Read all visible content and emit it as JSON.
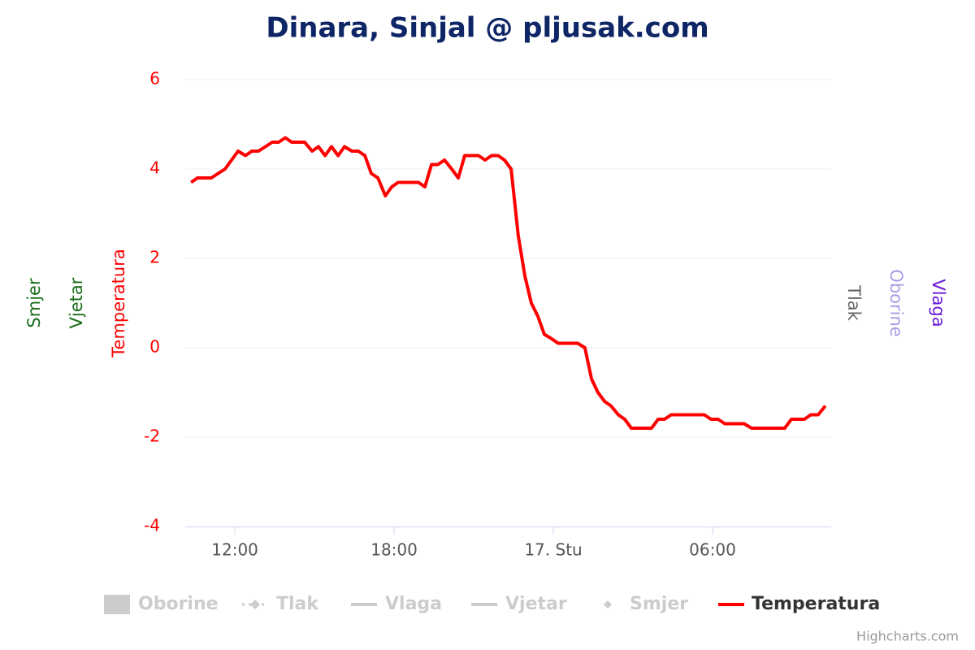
{
  "chart_data": {
    "type": "line",
    "title": "Dinara, Sinjal @ pljusak.com",
    "credits": "Highcharts.com",
    "x": [
      10.35,
      10.59,
      11.11,
      11.63,
      12.12,
      12.4,
      12.64,
      12.89,
      13.41,
      13.65,
      13.9,
      14.14,
      14.63,
      14.91,
      15.15,
      15.4,
      15.64,
      15.89,
      16.13,
      16.41,
      16.65,
      16.9,
      17.14,
      17.39,
      17.67,
      17.91,
      18.15,
      18.92,
      19.16,
      19.41,
      19.65,
      19.9,
      20.17,
      20.42,
      20.66,
      21.18,
      21.43,
      21.67,
      21.92,
      22.16,
      22.41,
      22.68,
      22.93,
      23.17,
      23.42,
      23.66,
      23.94,
      24.18,
      24.92,
      25.19,
      25.44,
      25.68,
      25.93,
      26.17,
      26.45,
      26.69,
      26.94,
      27.7,
      27.95,
      28.19,
      28.44,
      29.69,
      29.94,
      30.21,
      30.46,
      31.19,
      31.47,
      32.72,
      32.97,
      33.46,
      33.7,
      33.98,
      34.25
    ],
    "series": [
      {
        "name": "Temperatura",
        "color": "#ff0000",
        "values": [
          3.7,
          3.8,
          3.8,
          4.0,
          4.4,
          4.3,
          4.4,
          4.4,
          4.6,
          4.6,
          4.7,
          4.6,
          4.6,
          4.4,
          4.5,
          4.3,
          4.5,
          4.3,
          4.5,
          4.4,
          4.4,
          4.3,
          3.9,
          3.8,
          3.4,
          3.6,
          3.7,
          3.7,
          3.6,
          4.1,
          4.1,
          4.2,
          4.0,
          3.8,
          4.3,
          4.3,
          4.2,
          4.3,
          4.3,
          4.2,
          4.0,
          2.5,
          1.6,
          1.0,
          0.7,
          0.3,
          0.2,
          0.1,
          0.1,
          0.0,
          -0.7,
          -1.0,
          -1.2,
          -1.3,
          -1.5,
          -1.6,
          -1.8,
          -1.8,
          -1.6,
          -1.6,
          -1.5,
          -1.5,
          -1.6,
          -1.6,
          -1.7,
          -1.7,
          -1.8,
          -1.8,
          -1.6,
          -1.6,
          -1.5,
          -1.5,
          -1.3
        ]
      }
    ],
    "hidden_series": [
      {
        "name": "Oborine",
        "symbol": "area"
      },
      {
        "name": "Tlak",
        "symbol": "dotted-diamond"
      },
      {
        "name": "Vlaga",
        "symbol": "line"
      },
      {
        "name": "Vjetar",
        "symbol": "line"
      },
      {
        "name": "Smjer",
        "symbol": "diamond"
      }
    ],
    "axis_titles": [
      {
        "text": "Smjer",
        "color": "#1a6e1a",
        "side": "left"
      },
      {
        "text": "Vjetar",
        "color": "#1a6e1a",
        "side": "left"
      },
      {
        "text": "Temperatura",
        "color": "#ff0000",
        "side": "left"
      },
      {
        "text": "Tlak",
        "color": "#666666",
        "side": "right"
      },
      {
        "text": "Oborine",
        "color": "#a79ee6",
        "side": "right"
      },
      {
        "text": "Vlaga",
        "color": "#6a1ad6",
        "side": "right"
      }
    ],
    "xlim": [
      10.13,
      34.47
    ],
    "xticks": [
      {
        "value": 12,
        "label": "12:00"
      },
      {
        "value": 18,
        "label": "18:00"
      },
      {
        "value": 24,
        "label": "17. Stu"
      },
      {
        "value": 30,
        "label": "06:00"
      }
    ],
    "ylim": [
      -4,
      6
    ],
    "yticks": [
      -4,
      -2,
      0,
      2,
      4,
      6
    ],
    "grid": true
  }
}
